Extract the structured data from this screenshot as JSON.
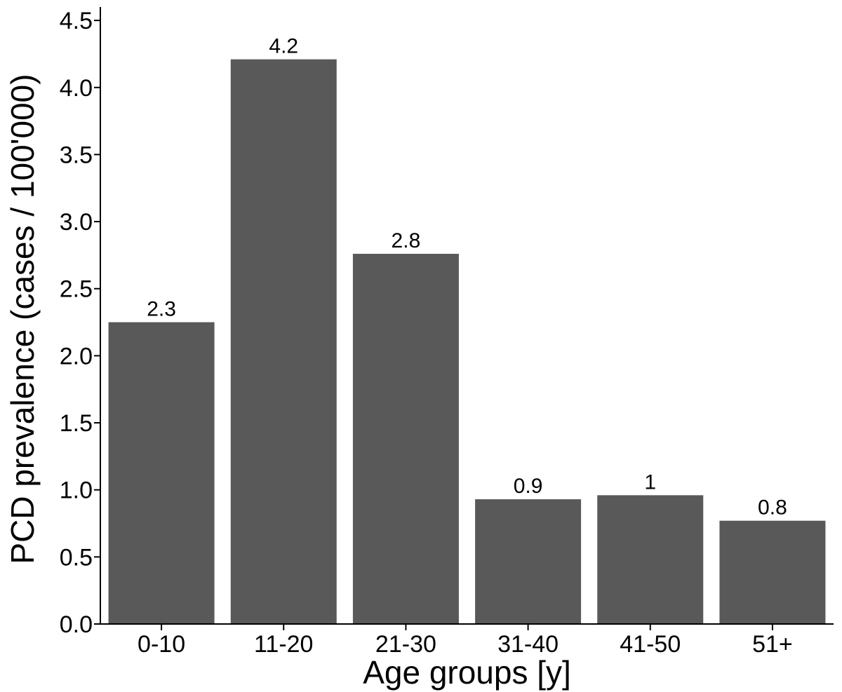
{
  "chart_data": {
    "type": "bar",
    "title": "",
    "xlabel": "Age groups [y]",
    "ylabel": "PCD prevalence (cases / 100'000)",
    "categories": [
      "0-10",
      "11-20",
      "21-30",
      "31-40",
      "41-50",
      "51+"
    ],
    "values": [
      2.25,
      4.21,
      2.76,
      0.93,
      0.96,
      0.77
    ],
    "data_labels": [
      "2.3",
      "4.2",
      "2.8",
      "0.9",
      "1",
      "0.8"
    ],
    "ylim": [
      0,
      4.6
    ],
    "yticks": [
      0.0,
      0.5,
      1.0,
      1.5,
      2.0,
      2.5,
      3.0,
      3.5,
      4.0,
      4.5
    ],
    "ytick_labels": [
      "0.0",
      "0.5",
      "1.0",
      "1.5",
      "2.0",
      "2.5",
      "3.0",
      "3.5",
      "4.0",
      "4.5"
    ],
    "grid": false,
    "legend": "none",
    "colors": {
      "bar": "#595959",
      "axis": "#000000",
      "background": "#ffffff"
    }
  }
}
